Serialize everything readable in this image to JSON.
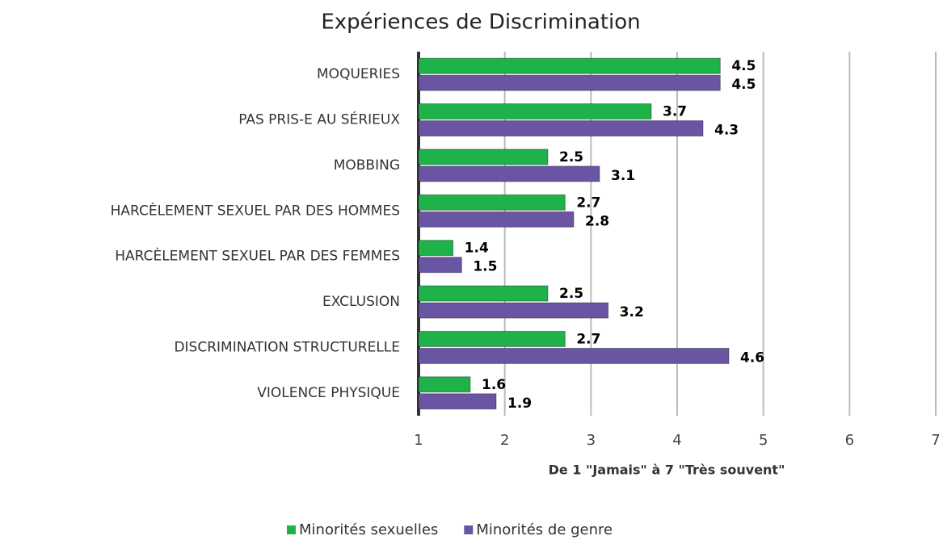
{
  "chart_data": {
    "type": "bar",
    "orientation": "horizontal",
    "title": "Expériences de Discrimination",
    "xlabel": "De 1 \"Jamais\" à 7 \"Très souvent\"",
    "categories": [
      "MOQUERIES",
      "PAS PRIS-E AU SÉRIEUX",
      "MOBBING",
      "HARCÈLEMENT  SEXUEL PAR DES HOMMES",
      "HARCÈLEMENT  SEXUEL PAR DES FEMMES",
      "EXCLUSION",
      "DISCRIMINATION  STRUCTURELLE",
      "VIOLENCE PHYSIQUE"
    ],
    "series": [
      {
        "name": "Minorités sexuelles",
        "color": "#1fb24a",
        "values": [
          4.5,
          3.7,
          2.5,
          2.7,
          1.4,
          2.5,
          2.7,
          1.6
        ]
      },
      {
        "name": "Minorités de genre",
        "color": "#6a55a3",
        "values": [
          4.5,
          4.3,
          3.1,
          2.8,
          1.5,
          3.2,
          4.6,
          1.9
        ]
      }
    ],
    "xlim": [
      1,
      7
    ],
    "xticks": [
      1,
      2,
      3,
      4,
      5,
      6,
      7
    ],
    "grid": true,
    "legend": "bottom"
  }
}
